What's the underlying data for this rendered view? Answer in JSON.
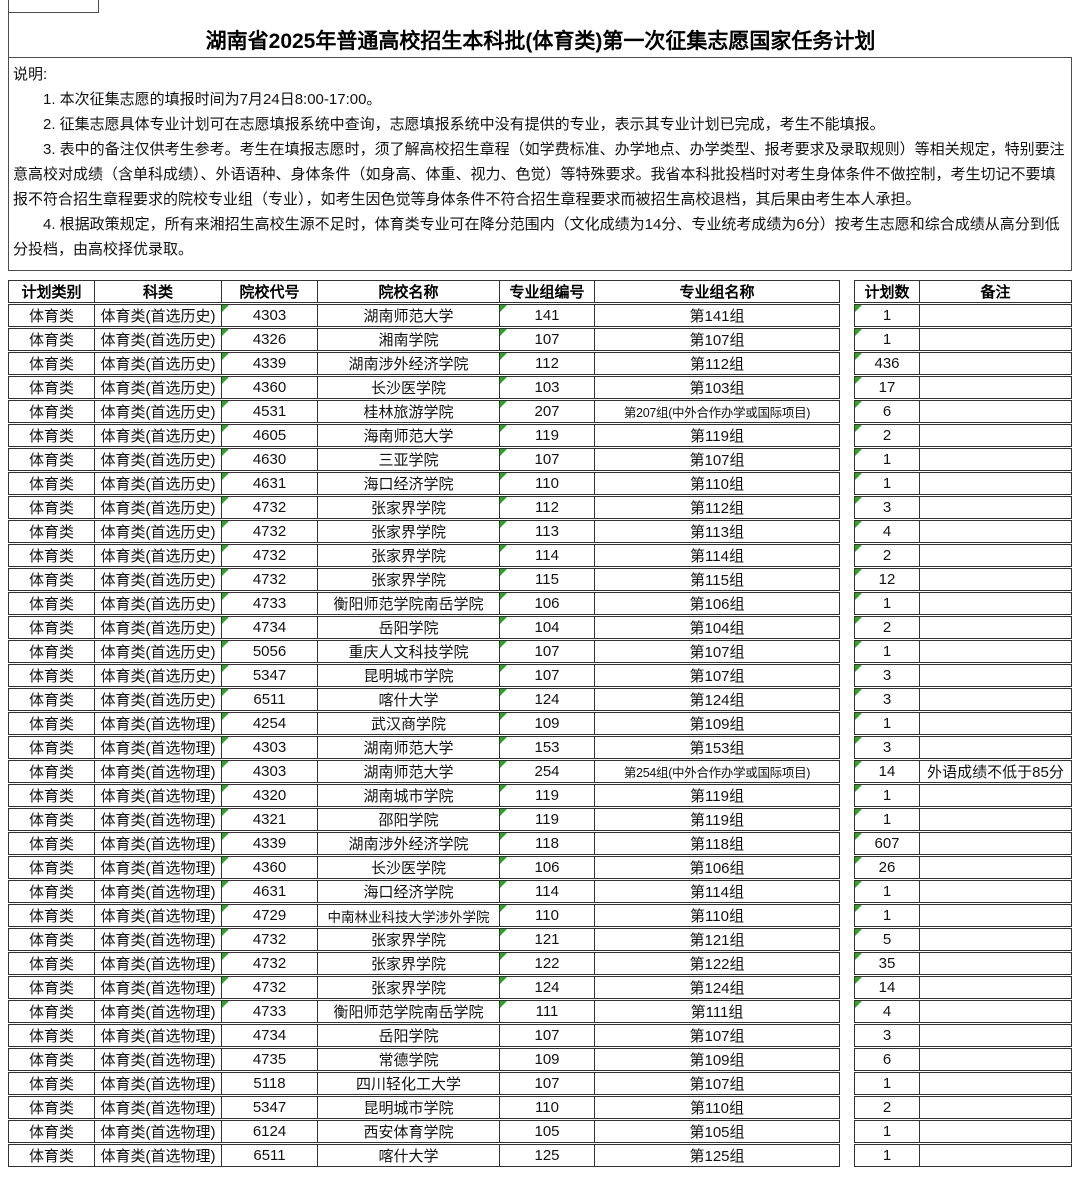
{
  "page": {
    "title": "湖南省2025年普通高校招生本科批(体育类)第一次征集志愿国家任务计划"
  },
  "notes": {
    "heading": "说明:",
    "items": [
      "1. 本次征集志愿的填报时间为7月24日8:00-17:00。",
      "2. 征集志愿具体专业计划可在志愿填报系统中查询，志愿填报系统中没有提供的专业，表示其专业计划已完成，考生不能填报。",
      "3. 表中的备注仅供考生参考。考生在填报志愿时，须了解高校招生章程（如学费标准、办学地点、办学类型、报考要求及录取规则）等相关规定，特别要注意高校对成绩（含单科成绩）、外语语种、身体条件（如身高、体重、视力、色觉）等特殊要求。我省本科批投档时对考生身体条件不做控制，考生切记不要填报不符合招生章程要求的院校专业组（专业），如考生因色觉等身体条件不符合招生章程要求而被招生高校退档，其后果由考生本人承担。",
      "4. 根据政策规定，所有来湘招生高校生源不足时，体育类专业可在降分范围内（文化成绩为14分、专业统考成绩为6分）按考生志愿和综合成绩从高分到低分投档，由高校择优录取。"
    ]
  },
  "table": {
    "columns": [
      "计划类别",
      "科类",
      "院校代号",
      "院校名称",
      "专业组编号",
      "专业组名称",
      "计划数",
      "备注"
    ],
    "flag_color": "#33a02c",
    "flag_columns": [
      2,
      4,
      6
    ],
    "rows": [
      {
        "cells": [
          "体育类",
          "体育类(首选历史)",
          "4303",
          "湖南师范大学",
          "141",
          "第141组",
          "1",
          ""
        ],
        "flagged": true
      },
      {
        "cells": [
          "体育类",
          "体育类(首选历史)",
          "4326",
          "湘南学院",
          "107",
          "第107组",
          "1",
          ""
        ],
        "flagged": true
      },
      {
        "cells": [
          "体育类",
          "体育类(首选历史)",
          "4339",
          "湖南涉外经济学院",
          "112",
          "第112组",
          "436",
          ""
        ],
        "flagged": true
      },
      {
        "cells": [
          "体育类",
          "体育类(首选历史)",
          "4360",
          "长沙医学院",
          "103",
          "第103组",
          "17",
          ""
        ],
        "flagged": true
      },
      {
        "cells": [
          "体育类",
          "体育类(首选历史)",
          "4531",
          "桂林旅游学院",
          "207",
          "第207组(中外合作办学或国际项目)",
          "6",
          ""
        ],
        "flagged": true
      },
      {
        "cells": [
          "体育类",
          "体育类(首选历史)",
          "4605",
          "海南师范大学",
          "119",
          "第119组",
          "2",
          ""
        ],
        "flagged": true
      },
      {
        "cells": [
          "体育类",
          "体育类(首选历史)",
          "4630",
          "三亚学院",
          "107",
          "第107组",
          "1",
          ""
        ],
        "flagged": true
      },
      {
        "cells": [
          "体育类",
          "体育类(首选历史)",
          "4631",
          "海口经济学院",
          "110",
          "第110组",
          "1",
          ""
        ],
        "flagged": true
      },
      {
        "cells": [
          "体育类",
          "体育类(首选历史)",
          "4732",
          "张家界学院",
          "112",
          "第112组",
          "3",
          ""
        ],
        "flagged": true
      },
      {
        "cells": [
          "体育类",
          "体育类(首选历史)",
          "4732",
          "张家界学院",
          "113",
          "第113组",
          "4",
          ""
        ],
        "flagged": true
      },
      {
        "cells": [
          "体育类",
          "体育类(首选历史)",
          "4732",
          "张家界学院",
          "114",
          "第114组",
          "2",
          ""
        ],
        "flagged": true
      },
      {
        "cells": [
          "体育类",
          "体育类(首选历史)",
          "4732",
          "张家界学院",
          "115",
          "第115组",
          "12",
          ""
        ],
        "flagged": true
      },
      {
        "cells": [
          "体育类",
          "体育类(首选历史)",
          "4733",
          "衡阳师范学院南岳学院",
          "106",
          "第106组",
          "1",
          ""
        ],
        "flagged": true
      },
      {
        "cells": [
          "体育类",
          "体育类(首选历史)",
          "4734",
          "岳阳学院",
          "104",
          "第104组",
          "2",
          ""
        ],
        "flagged": true
      },
      {
        "cells": [
          "体育类",
          "体育类(首选历史)",
          "5056",
          "重庆人文科技学院",
          "107",
          "第107组",
          "1",
          ""
        ],
        "flagged": true
      },
      {
        "cells": [
          "体育类",
          "体育类(首选历史)",
          "5347",
          "昆明城市学院",
          "107",
          "第107组",
          "3",
          ""
        ],
        "flagged": true
      },
      {
        "cells": [
          "体育类",
          "体育类(首选历史)",
          "6511",
          "喀什大学",
          "124",
          "第124组",
          "3",
          ""
        ],
        "flagged": true
      },
      {
        "cells": [
          "体育类",
          "体育类(首选物理)",
          "4254",
          "武汉商学院",
          "109",
          "第109组",
          "1",
          ""
        ],
        "flagged": true
      },
      {
        "cells": [
          "体育类",
          "体育类(首选物理)",
          "4303",
          "湖南师范大学",
          "153",
          "第153组",
          "3",
          ""
        ],
        "flagged": true
      },
      {
        "cells": [
          "体育类",
          "体育类(首选物理)",
          "4303",
          "湖南师范大学",
          "254",
          "第254组(中外合作办学或国际项目)",
          "14",
          "外语成绩不低于85分"
        ],
        "flagged": true
      },
      {
        "cells": [
          "体育类",
          "体育类(首选物理)",
          "4320",
          "湖南城市学院",
          "119",
          "第119组",
          "1",
          ""
        ],
        "flagged": true
      },
      {
        "cells": [
          "体育类",
          "体育类(首选物理)",
          "4321",
          "邵阳学院",
          "119",
          "第119组",
          "1",
          ""
        ],
        "flagged": true
      },
      {
        "cells": [
          "体育类",
          "体育类(首选物理)",
          "4339",
          "湖南涉外经济学院",
          "118",
          "第118组",
          "607",
          ""
        ],
        "flagged": true
      },
      {
        "cells": [
          "体育类",
          "体育类(首选物理)",
          "4360",
          "长沙医学院",
          "106",
          "第106组",
          "26",
          ""
        ],
        "flagged": true
      },
      {
        "cells": [
          "体育类",
          "体育类(首选物理)",
          "4631",
          "海口经济学院",
          "114",
          "第114组",
          "1",
          ""
        ],
        "flagged": true
      },
      {
        "cells": [
          "体育类",
          "体育类(首选物理)",
          "4729",
          "中南林业科技大学涉外学院",
          "110",
          "第110组",
          "1",
          ""
        ],
        "flagged": true
      },
      {
        "cells": [
          "体育类",
          "体育类(首选物理)",
          "4732",
          "张家界学院",
          "121",
          "第121组",
          "5",
          ""
        ],
        "flagged": true
      },
      {
        "cells": [
          "体育类",
          "体育类(首选物理)",
          "4732",
          "张家界学院",
          "122",
          "第122组",
          "35",
          ""
        ],
        "flagged": true
      },
      {
        "cells": [
          "体育类",
          "体育类(首选物理)",
          "4732",
          "张家界学院",
          "124",
          "第124组",
          "14",
          ""
        ],
        "flagged": true
      },
      {
        "cells": [
          "体育类",
          "体育类(首选物理)",
          "4733",
          "衡阳师范学院南岳学院",
          "111",
          "第111组",
          "4",
          ""
        ],
        "flagged": true
      },
      {
        "cells": [
          "体育类",
          "体育类(首选物理)",
          "4734",
          "岳阳学院",
          "107",
          "第107组",
          "3",
          ""
        ],
        "flagged": false
      },
      {
        "cells": [
          "体育类",
          "体育类(首选物理)",
          "4735",
          "常德学院",
          "109",
          "第109组",
          "6",
          ""
        ],
        "flagged": false
      },
      {
        "cells": [
          "体育类",
          "体育类(首选物理)",
          "5118",
          "四川轻化工大学",
          "107",
          "第107组",
          "1",
          ""
        ],
        "flagged": false
      },
      {
        "cells": [
          "体育类",
          "体育类(首选物理)",
          "5347",
          "昆明城市学院",
          "110",
          "第110组",
          "2",
          ""
        ],
        "flagged": false
      },
      {
        "cells": [
          "体育类",
          "体育类(首选物理)",
          "6124",
          "西安体育学院",
          "105",
          "第105组",
          "1",
          ""
        ],
        "flagged": false
      },
      {
        "cells": [
          "体育类",
          "体育类(首选物理)",
          "6511",
          "喀什大学",
          "125",
          "第125组",
          "1",
          ""
        ],
        "flagged": false
      }
    ]
  }
}
